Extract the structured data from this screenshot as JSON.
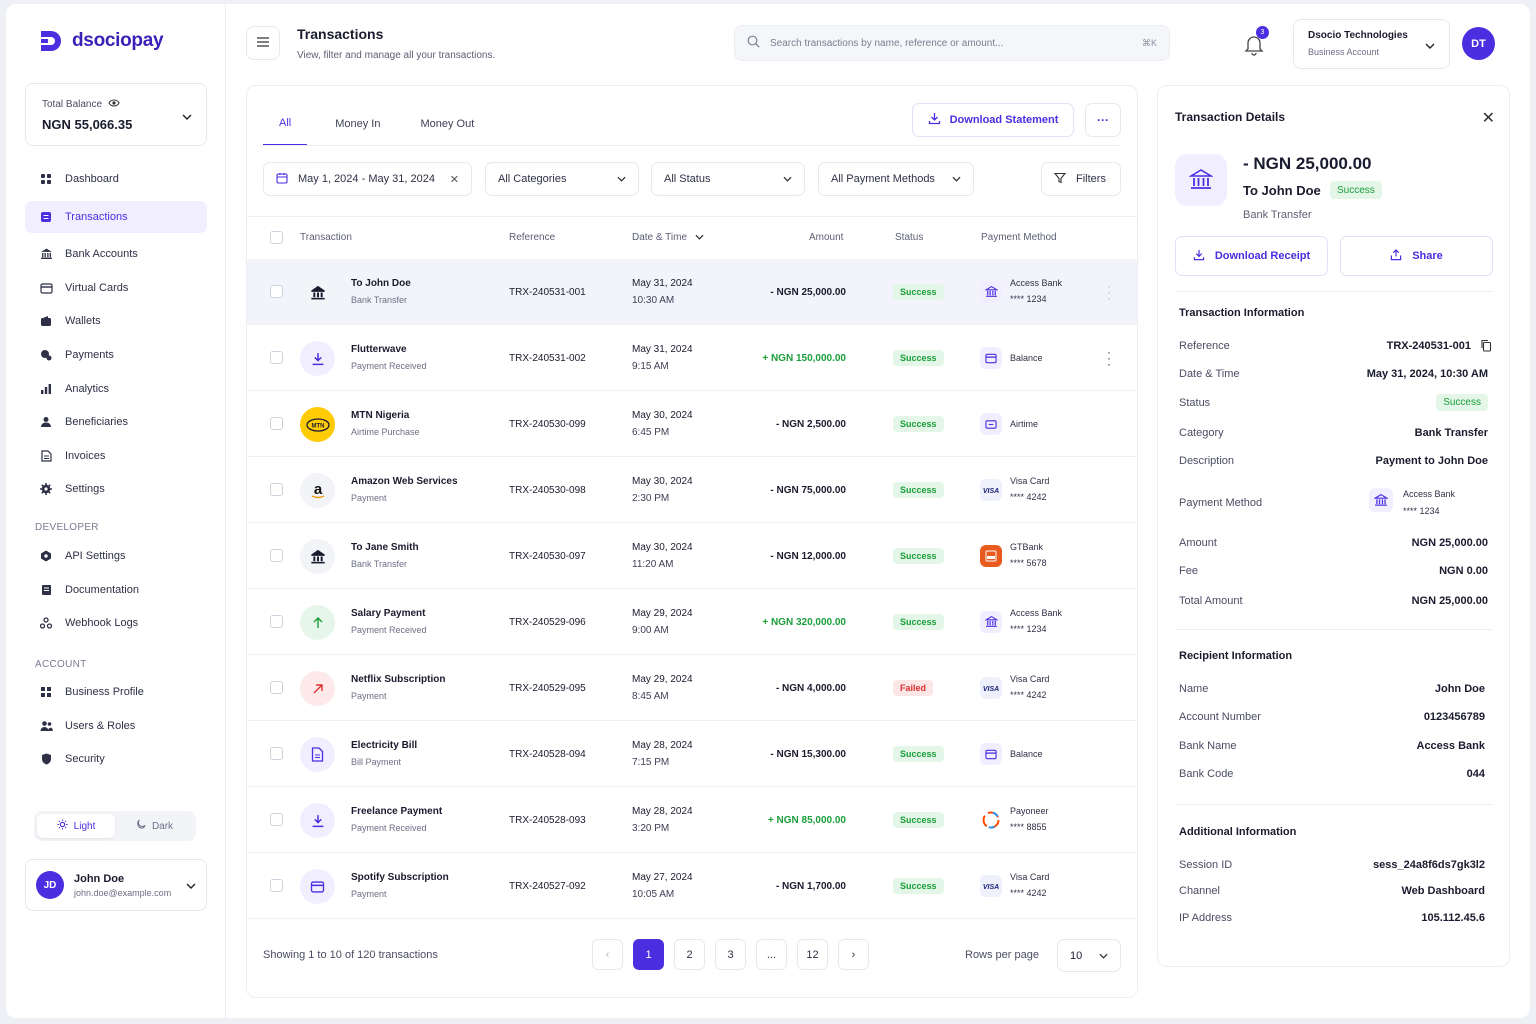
{
  "brand": {
    "name": "dsociopay",
    "color": "#4a2ee0"
  },
  "balance": {
    "label": "Total Balance",
    "value": "NGN 55,066.35"
  },
  "nav": {
    "main": [
      {
        "label": "Dashboard",
        "icon": "dashboard-icon"
      },
      {
        "label": "Transactions",
        "icon": "transactions-icon",
        "active": true
      },
      {
        "label": "Bank Accounts",
        "icon": "bank-icon"
      },
      {
        "label": "Virtual Cards",
        "icon": "card-icon"
      },
      {
        "label": "Wallets",
        "icon": "wallet-icon"
      },
      {
        "label": "Payments",
        "icon": "payments-icon"
      },
      {
        "label": "Analytics",
        "icon": "analytics-icon"
      },
      {
        "label": "Beneficiaries",
        "icon": "user-icon"
      },
      {
        "label": "Invoices",
        "icon": "invoice-icon"
      },
      {
        "label": "Settings",
        "icon": "gear-icon"
      }
    ],
    "developer_heading": "DEVELOPER",
    "developer": [
      {
        "label": "API Settings",
        "icon": "api-icon"
      },
      {
        "label": "Documentation",
        "icon": "docs-icon"
      },
      {
        "label": "Webhook Logs",
        "icon": "webhook-icon"
      }
    ],
    "account_heading": "ACCOUNT",
    "account": [
      {
        "label": "Business Profile",
        "icon": "business-icon"
      },
      {
        "label": "Users & Roles",
        "icon": "users-icon"
      },
      {
        "label": "Security",
        "icon": "shield-icon"
      }
    ]
  },
  "theme": {
    "light": "Light",
    "dark": "Dark"
  },
  "user": {
    "initials": "JD",
    "name": "John Doe",
    "email": "john.doe@example.com"
  },
  "header": {
    "title": "Transactions",
    "subtitle": "View, filter and manage all your transactions.",
    "search_placeholder": "Search transactions by name, reference or amount...",
    "search_shortcut": "⌘K",
    "notifications": "3",
    "account_name": "Dsocio Technologies",
    "account_type": "Business Account",
    "avatar": "DT"
  },
  "tabs": [
    "All",
    "Money In",
    "Money Out"
  ],
  "toolbar": {
    "download": "Download Statement",
    "more": "···"
  },
  "filters": {
    "date_range": "May 1, 2024 - May 31, 2024",
    "category": "All Categories",
    "status": "All Status",
    "payment_method": "All Payment Methods",
    "filters": "Filters"
  },
  "columns": {
    "transaction": "Transaction",
    "reference": "Reference",
    "datetime": "Date & Time",
    "amount": "Amount",
    "status": "Status",
    "payment_method": "Payment Method"
  },
  "rows": [
    {
      "name": "To John Doe",
      "sub": "Bank Transfer",
      "ref": "TRX-240531-001",
      "date": "May 31, 2024",
      "time": "10:30 AM",
      "amount": "- NGN 25,000.00",
      "dir": "out",
      "status": "Success",
      "pm": "Access Bank",
      "pm_num": "**** 1234",
      "icon": "bank-icon",
      "pm_icon": "bank-icon"
    },
    {
      "name": "Flutterwave",
      "sub": "Payment Received",
      "ref": "TRX-240531-002",
      "date": "May 31, 2024",
      "time": "9:15 AM",
      "amount": "+ NGN 150,000.00",
      "dir": "in",
      "status": "Success",
      "pm": "Balance",
      "pm_num": "",
      "icon": "download-icon",
      "pm_icon": "wallet-icon"
    },
    {
      "name": "MTN Nigeria",
      "sub": "Airtime Purchase",
      "ref": "TRX-240530-099",
      "date": "May 30, 2024",
      "time": "6:45 PM",
      "amount": "- NGN 2,500.00",
      "dir": "out",
      "status": "Success",
      "pm": "Airtime",
      "pm_num": "",
      "icon": "mtn-logo-icon",
      "pm_icon": "phone-icon"
    },
    {
      "name": "Amazon Web Services",
      "sub": "Payment",
      "ref": "TRX-240530-098",
      "date": "May 30, 2024",
      "time": "2:30 PM",
      "amount": "- NGN 75,000.00",
      "dir": "out",
      "status": "Success",
      "pm": "Visa Card",
      "pm_num": "**** 4242",
      "icon": "amazon-logo-icon",
      "pm_icon": "visa-icon"
    },
    {
      "name": "To Jane Smith",
      "sub": "Bank Transfer",
      "ref": "TRX-240530-097",
      "date": "May 30, 2024",
      "time": "11:20 AM",
      "amount": "- NGN 12,000.00",
      "dir": "out",
      "status": "Success",
      "pm": "GTBank",
      "pm_num": "**** 5678",
      "icon": "bank-icon",
      "pm_icon": "gtbank-icon"
    },
    {
      "name": "Salary Payment",
      "sub": "Payment Received",
      "ref": "TRX-240529-096",
      "date": "May 29, 2024",
      "time": "9:00 AM",
      "amount": "+ NGN 320,000.00",
      "dir": "in",
      "status": "Success",
      "pm": "Access Bank",
      "pm_num": "**** 1234",
      "icon": "arrow-up-icon",
      "pm_icon": "bank-icon"
    },
    {
      "name": "Netflix Subscription",
      "sub": "Payment",
      "ref": "TRX-240529-095",
      "date": "May 29, 2024",
      "time": "8:45 AM",
      "amount": "- NGN 4,000.00",
      "dir": "out",
      "status": "Failed",
      "pm": "Visa Card",
      "pm_num": "**** 4242",
      "icon": "arrow-up-right-icon",
      "pm_icon": "visa-icon"
    },
    {
      "name": "Electricity Bill",
      "sub": "Bill Payment",
      "ref": "TRX-240528-094",
      "date": "May 28, 2024",
      "time": "7:15 PM",
      "amount": "- NGN 15,300.00",
      "dir": "out",
      "status": "Success",
      "pm": "Balance",
      "pm_num": "",
      "icon": "document-icon",
      "pm_icon": "wallet-icon"
    },
    {
      "name": "Freelance Payment",
      "sub": "Payment Received",
      "ref": "TRX-240528-093",
      "date": "May 28, 2024",
      "time": "3:20 PM",
      "amount": "+ NGN 85,000.00",
      "dir": "in",
      "status": "Success",
      "pm": "Payoneer",
      "pm_num": "**** 8855",
      "icon": "download-icon",
      "pm_icon": "payoneer-icon"
    },
    {
      "name": "Spotify Subscription",
      "sub": "Payment",
      "ref": "TRX-240527-092",
      "date": "May 27, 2024",
      "time": "10:05 AM",
      "amount": "- NGN 1,700.00",
      "dir": "out",
      "status": "Success",
      "pm": "Visa Card",
      "pm_num": "**** 4242",
      "icon": "card-icon",
      "pm_icon": "visa-icon"
    }
  ],
  "pagination": {
    "showing": "Showing 1 to 10 of 120 transactions",
    "pages": [
      "1",
      "2",
      "3",
      "...",
      "12"
    ],
    "current": "1",
    "rows_label": "Rows per page",
    "rows_value": "10"
  },
  "details": {
    "title": "Transaction Details",
    "amount": "- NGN 25,000.00",
    "to": "To John Doe",
    "status": "Success",
    "method": "Bank Transfer",
    "download_receipt": "Download Receipt",
    "share": "Share",
    "info_heading": "Transaction Information",
    "info": [
      {
        "k": "Reference",
        "v": "TRX-240531-001"
      },
      {
        "k": "Date & Time",
        "v": "May 31, 2024, 10:30 AM"
      },
      {
        "k": "Status",
        "v": "Success"
      },
      {
        "k": "Category",
        "v": "Bank Transfer"
      },
      {
        "k": "Description",
        "v": "Payment to John Doe"
      }
    ],
    "pm_label": "Payment Method",
    "pm_name": "Access Bank",
    "pm_num": "**** 1234",
    "amounts": [
      {
        "k": "Amount",
        "v": "NGN 25,000.00"
      },
      {
        "k": "Fee",
        "v": "NGN 0.00"
      },
      {
        "k": "Total Amount",
        "v": "NGN 25,000.00"
      }
    ],
    "recipient_heading": "Recipient Information",
    "recipient": [
      {
        "k": "Name",
        "v": "John Doe"
      },
      {
        "k": "Account Number",
        "v": "0123456789"
      },
      {
        "k": "Bank Name",
        "v": "Access Bank"
      },
      {
        "k": "Bank Code",
        "v": "044"
      }
    ],
    "additional_heading": "Additional Information",
    "additional": [
      {
        "k": "Session ID",
        "v": "sess_24a8f6ds7gk3l2"
      },
      {
        "k": "Channel",
        "v": "Web Dashboard"
      },
      {
        "k": "IP Address",
        "v": "105.112.45.6"
      }
    ]
  }
}
